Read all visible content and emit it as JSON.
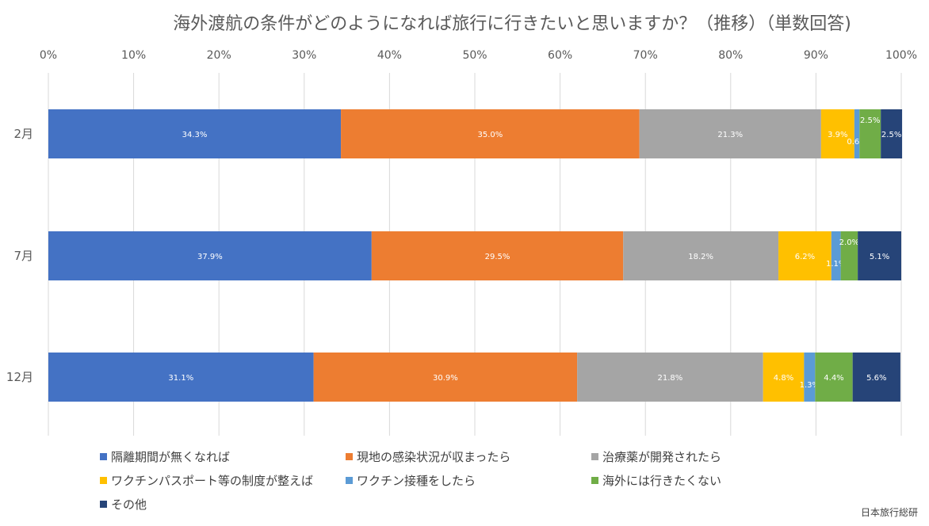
{
  "chart_data": {
    "type": "bar",
    "orientation": "horizontal",
    "stacked": "percent",
    "title": "海外渡航の条件がどのようになれば旅行に行きたいと思いますか？（推移）（単数回答)",
    "categories": [
      "2月",
      "7月",
      "12月"
    ],
    "x_ticks": [
      "0%",
      "10%",
      "20%",
      "30%",
      "40%",
      "50%",
      "60%",
      "70%",
      "80%",
      "90%",
      "100%"
    ],
    "xlim": [
      0,
      100
    ],
    "grid": true,
    "legend_position": "bottom",
    "series": [
      {
        "name": "隔離期間が無くなれば",
        "color": "#4472C4",
        "values": [
          34.3,
          37.9,
          31.1
        ],
        "labels": [
          "34.3%",
          "37.9%",
          "31.1%"
        ]
      },
      {
        "name": "現地の感染状況が収まったら",
        "color": "#ED7D31",
        "values": [
          35.0,
          29.5,
          30.9
        ],
        "labels": [
          "35.0%",
          "29.5%",
          "30.9%"
        ]
      },
      {
        "name": "治療薬が開発されたら",
        "color": "#A5A5A5",
        "values": [
          21.3,
          18.2,
          21.8
        ],
        "labels": [
          "21.3%",
          "18.2%",
          "21.8%"
        ]
      },
      {
        "name": "ワクチンパスポート等の制度が整えば",
        "color": "#FFC000",
        "values": [
          3.9,
          6.2,
          4.8
        ],
        "labels": [
          "3.9%",
          "6.2%",
          "4.8%"
        ]
      },
      {
        "name": "ワクチン接種をしたら",
        "color": "#5B9BD5",
        "values": [
          0.6,
          1.1,
          1.3
        ],
        "labels": [
          "0.6%",
          "1.1%",
          "1.3%"
        ]
      },
      {
        "name": "海外には行きたくない",
        "color": "#70AD47",
        "values": [
          2.5,
          2.0,
          4.4
        ],
        "labels": [
          "2.5%",
          "2.0%",
          "4.4%"
        ]
      },
      {
        "name": "その他",
        "color": "#264478",
        "values": [
          2.5,
          5.1,
          5.6
        ],
        "labels": [
          "2.5%",
          "5.1%",
          "5.6%"
        ]
      }
    ]
  },
  "source": "日本旅行総研"
}
